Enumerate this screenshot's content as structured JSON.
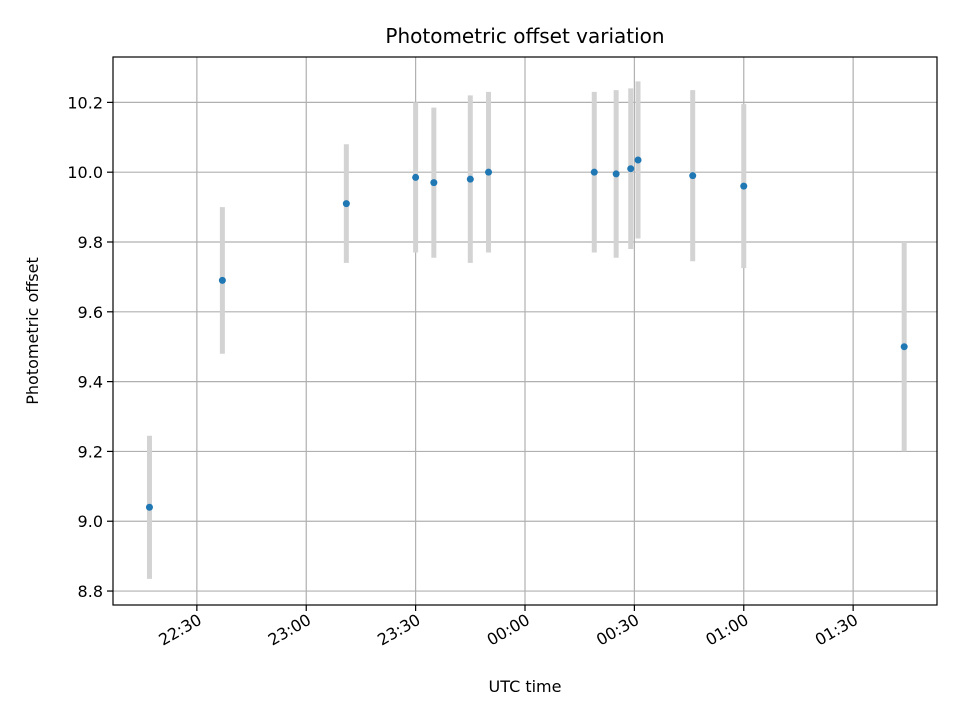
{
  "chart_data": {
    "type": "scatter",
    "title": "Photometric offset variation",
    "xlabel": "UTC time",
    "ylabel": "Photometric offset",
    "x_is_time": true,
    "xlim": [
      "22:07",
      "01:53"
    ],
    "ylim": [
      8.76,
      10.33
    ],
    "grid": true,
    "x_ticks": [
      "22:30",
      "23:00",
      "23:30",
      "00:00",
      "00:30",
      "01:00",
      "01:30"
    ],
    "y_ticks": [
      8.8,
      9.0,
      9.2,
      9.4,
      9.6,
      9.8,
      10.0,
      10.2
    ],
    "colors": {
      "point": "#1f77b4",
      "errorbar": "#d3d3d3",
      "grid": "#b0b0b0"
    },
    "points": [
      {
        "x": "22:17",
        "y": 9.04,
        "yerr": 0.205
      },
      {
        "x": "22:37",
        "y": 9.69,
        "yerr": 0.21
      },
      {
        "x": "23:11",
        "y": 9.91,
        "yerr": 0.17
      },
      {
        "x": "23:30",
        "y": 9.985,
        "yerr": 0.215
      },
      {
        "x": "23:35",
        "y": 9.97,
        "yerr": 0.215
      },
      {
        "x": "23:45",
        "y": 9.98,
        "yerr": 0.24
      },
      {
        "x": "23:50",
        "y": 10.0,
        "yerr": 0.23
      },
      {
        "x": "00:19",
        "y": 10.0,
        "yerr": 0.23
      },
      {
        "x": "00:25",
        "y": 9.995,
        "yerr": 0.24
      },
      {
        "x": "00:29",
        "y": 10.01,
        "yerr": 0.23
      },
      {
        "x": "00:31",
        "y": 10.035,
        "yerr": 0.225
      },
      {
        "x": "00:46",
        "y": 9.99,
        "yerr": 0.245
      },
      {
        "x": "01:00",
        "y": 9.96,
        "yerr": 0.235
      },
      {
        "x": "01:44",
        "y": 9.5,
        "yerr": 0.3
      }
    ]
  }
}
